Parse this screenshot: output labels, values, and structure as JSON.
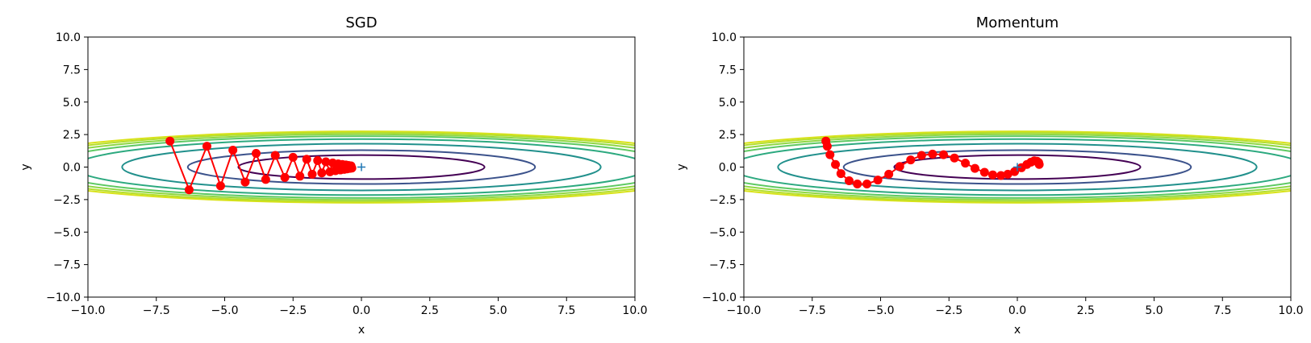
{
  "chart_data": [
    {
      "type": "contour+line",
      "title": "SGD",
      "xlabel": "x",
      "ylabel": "y",
      "xlim": [
        -10,
        10
      ],
      "ylim": [
        -10,
        10
      ],
      "xticks": [
        "−10.0",
        "−7.5",
        "−5.0",
        "−2.5",
        "0.0",
        "2.5",
        "5.0",
        "7.5",
        "10.0"
      ],
      "yticks": [
        "10.0",
        "7.5",
        "5.0",
        "2.5",
        "0.0",
        "−2.5",
        "−5.0",
        "−7.5",
        "−10.0"
      ],
      "grid": false,
      "minimum_marker": {
        "x": 0,
        "y": 0,
        "symbol": "+",
        "color": "#1f77b4"
      },
      "path_color": "#ff0000",
      "path": [
        {
          "x": -7.0,
          "y": 2.0
        },
        {
          "x": -6.3,
          "y": -1.75
        },
        {
          "x": -5.65,
          "y": 1.6
        },
        {
          "x": -5.15,
          "y": -1.45
        },
        {
          "x": -4.7,
          "y": 1.3
        },
        {
          "x": -4.25,
          "y": -1.15
        },
        {
          "x": -3.85,
          "y": 1.05
        },
        {
          "x": -3.5,
          "y": -0.95
        },
        {
          "x": -3.15,
          "y": 0.9
        },
        {
          "x": -2.8,
          "y": -0.8
        },
        {
          "x": -2.5,
          "y": 0.75
        },
        {
          "x": -2.25,
          "y": -0.7
        },
        {
          "x": -2.0,
          "y": 0.6
        },
        {
          "x": -1.8,
          "y": -0.55
        },
        {
          "x": -1.6,
          "y": 0.5
        },
        {
          "x": -1.45,
          "y": -0.45
        },
        {
          "x": -1.3,
          "y": 0.4
        },
        {
          "x": -1.15,
          "y": -0.36
        },
        {
          "x": -1.05,
          "y": 0.32
        },
        {
          "x": -0.95,
          "y": -0.28
        },
        {
          "x": -0.85,
          "y": 0.25
        },
        {
          "x": -0.77,
          "y": -0.22
        },
        {
          "x": -0.7,
          "y": 0.2
        },
        {
          "x": -0.63,
          "y": -0.18
        },
        {
          "x": -0.57,
          "y": 0.16
        },
        {
          "x": -0.52,
          "y": -0.14
        },
        {
          "x": -0.47,
          "y": 0.12
        },
        {
          "x": -0.42,
          "y": -0.1
        },
        {
          "x": -0.38,
          "y": 0.09
        },
        {
          "x": -0.35,
          "y": -0.08
        }
      ],
      "contour_levels": [
        {
          "a": 4.5,
          "color": "#440154"
        },
        {
          "a": 6.35,
          "color": "#3b528b"
        },
        {
          "a": 8.75,
          "color": "#21908c"
        },
        {
          "a": 10.5,
          "color": "#2ca97f"
        },
        {
          "a": 11.6,
          "color": "#5ec962"
        },
        {
          "a": 12.3,
          "color": "#8fd744"
        },
        {
          "a": 12.9,
          "color": "#b5de2b"
        },
        {
          "a": 13.4,
          "color": "#d8e219"
        }
      ]
    },
    {
      "type": "contour+line",
      "title": "Momentum",
      "xlabel": "x",
      "ylabel": "y",
      "xlim": [
        -10,
        10
      ],
      "ylim": [
        -10,
        10
      ],
      "xticks": [
        "−10.0",
        "−7.5",
        "−5.0",
        "−2.5",
        "0.0",
        "2.5",
        "5.0",
        "7.5",
        "10.0"
      ],
      "yticks": [
        "10.0",
        "7.5",
        "5.0",
        "2.5",
        "0.0",
        "−2.5",
        "−5.0",
        "−7.5",
        "−10.0"
      ],
      "grid": false,
      "minimum_marker": {
        "x": 0,
        "y": 0,
        "symbol": "+",
        "color": "#1f77b4"
      },
      "path_color": "#ff0000",
      "path": [
        {
          "x": -7.0,
          "y": 2.0
        },
        {
          "x": -6.95,
          "y": 1.6
        },
        {
          "x": -6.85,
          "y": 0.95
        },
        {
          "x": -6.65,
          "y": 0.2
        },
        {
          "x": -6.45,
          "y": -0.5
        },
        {
          "x": -6.15,
          "y": -1.05
        },
        {
          "x": -5.85,
          "y": -1.3
        },
        {
          "x": -5.5,
          "y": -1.3
        },
        {
          "x": -5.1,
          "y": -1.0
        },
        {
          "x": -4.7,
          "y": -0.55
        },
        {
          "x": -4.3,
          "y": 0.05
        },
        {
          "x": -3.9,
          "y": 0.55
        },
        {
          "x": -3.5,
          "y": 0.9
        },
        {
          "x": -3.1,
          "y": 1.0
        },
        {
          "x": -2.7,
          "y": 0.95
        },
        {
          "x": -2.3,
          "y": 0.7
        },
        {
          "x": -1.9,
          "y": 0.3
        },
        {
          "x": -1.55,
          "y": -0.1
        },
        {
          "x": -1.2,
          "y": -0.4
        },
        {
          "x": -0.9,
          "y": -0.6
        },
        {
          "x": -0.6,
          "y": -0.65
        },
        {
          "x": -0.35,
          "y": -0.55
        },
        {
          "x": -0.1,
          "y": -0.35
        },
        {
          "x": 0.15,
          "y": -0.05
        },
        {
          "x": 0.35,
          "y": 0.2
        },
        {
          "x": 0.5,
          "y": 0.38
        },
        {
          "x": 0.62,
          "y": 0.48
        },
        {
          "x": 0.72,
          "y": 0.45
        },
        {
          "x": 0.78,
          "y": 0.35
        },
        {
          "x": 0.8,
          "y": 0.2
        }
      ],
      "contour_levels": [
        {
          "a": 4.5,
          "color": "#440154"
        },
        {
          "a": 6.35,
          "color": "#3b528b"
        },
        {
          "a": 8.75,
          "color": "#21908c"
        },
        {
          "a": 10.5,
          "color": "#2ca97f"
        },
        {
          "a": 11.6,
          "color": "#5ec962"
        },
        {
          "a": 12.3,
          "color": "#8fd744"
        },
        {
          "a": 12.9,
          "color": "#b5de2b"
        },
        {
          "a": 13.4,
          "color": "#d8e219"
        }
      ]
    }
  ]
}
